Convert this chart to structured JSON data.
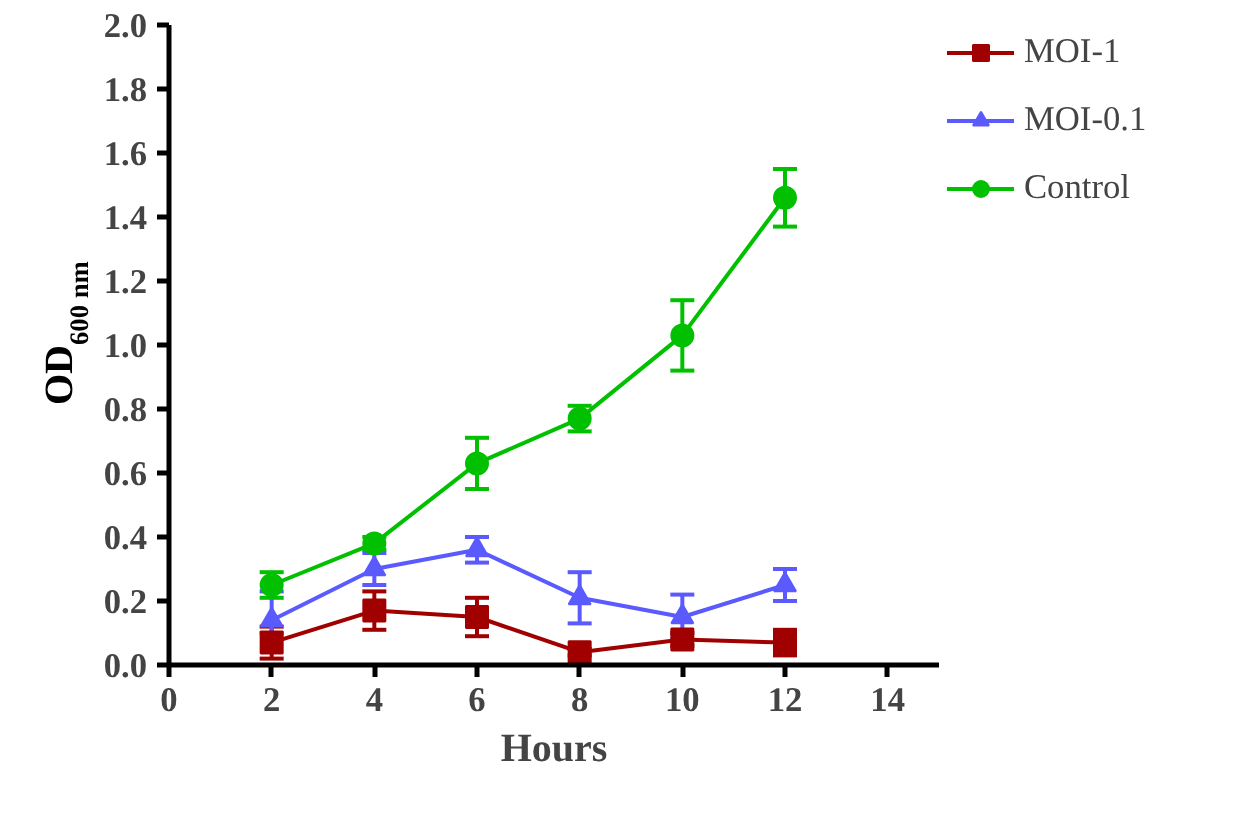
{
  "chart_data": {
    "type": "line",
    "xlabel": "Hours",
    "ylabel": "OD$_{600 nm}$",
    "x": [
      2,
      4,
      6,
      8,
      10,
      12
    ],
    "xlim": [
      0,
      15
    ],
    "xticks": [
      0,
      2,
      4,
      6,
      8,
      10,
      12,
      14
    ],
    "ylim": [
      0,
      2.0
    ],
    "yticks": [
      {
        "value": 0,
        "label": "0.0"
      },
      0.2,
      0.4,
      0.6,
      0.8,
      {
        "value": 1,
        "label": "1.0"
      },
      1.2,
      1.4,
      1.6,
      1.8,
      {
        "value": 2,
        "label": "2.0"
      }
    ],
    "grid": false,
    "legend": "right",
    "series": [
      {
        "name": "MOI-1",
        "color": "#a00000",
        "marker": "square",
        "values": [
          0.07,
          0.17,
          0.15,
          0.04,
          0.08,
          0.07
        ],
        "errors": [
          0.05,
          0.06,
          0.06,
          0.01,
          0.02,
          0.04
        ]
      },
      {
        "name": "MOI-0.1",
        "color": "#5a5aff",
        "marker": "triangle",
        "values": [
          0.14,
          0.3,
          0.36,
          0.21,
          0.15,
          0.25
        ],
        "errors": [
          [
            0.1,
            0.23
          ],
          0.05,
          0.04,
          0.08,
          0.07,
          0.05
        ]
      },
      {
        "name": "Control",
        "color": "#00c000",
        "marker": "circle",
        "values": [
          0.25,
          0.38,
          0.63,
          0.77,
          1.03,
          1.46
        ],
        "errors": [
          0.04,
          0.02,
          0.08,
          0.04,
          0.11,
          0.09
        ]
      }
    ]
  }
}
